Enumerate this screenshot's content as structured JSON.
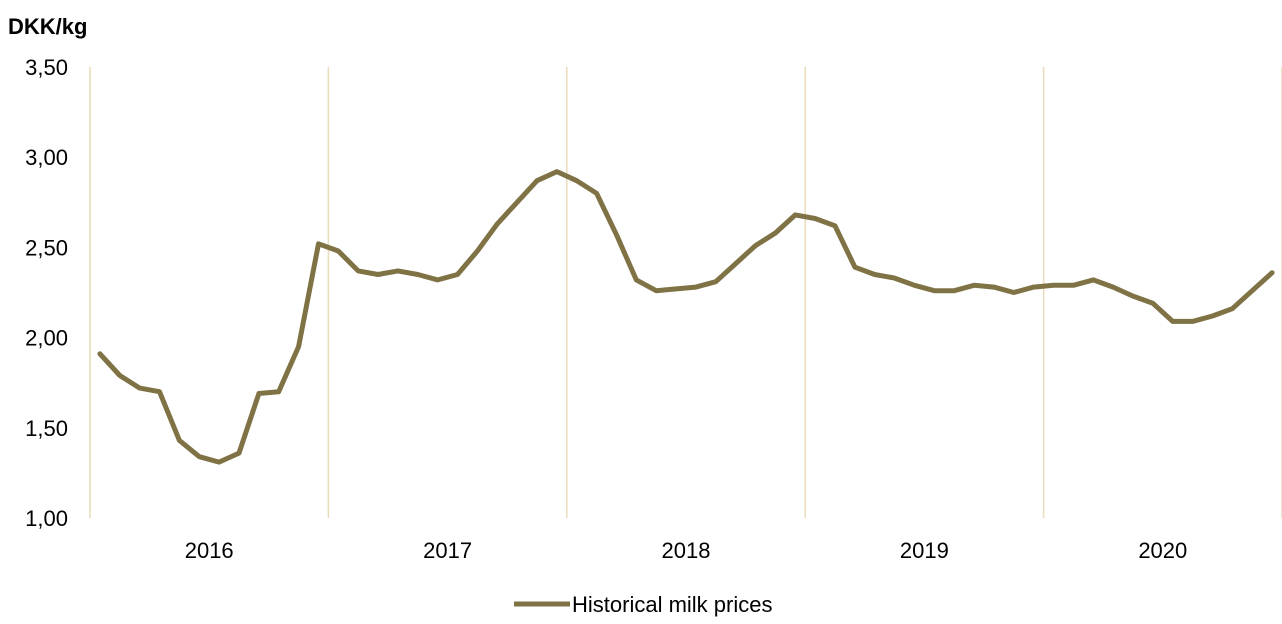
{
  "chart_data": {
    "type": "line",
    "title": "",
    "ylabel": "DKK/kg",
    "xlabel": "",
    "ylim": [
      1.0,
      3.5
    ],
    "yticks": [
      "1,00",
      "1,50",
      "2,00",
      "2,50",
      "3,00",
      "3,50"
    ],
    "ytick_values": [
      1.0,
      1.5,
      2.0,
      2.5,
      3.0,
      3.5
    ],
    "year_labels": [
      "2016",
      "2017",
      "2018",
      "2019",
      "2020"
    ],
    "months_per_year": 12,
    "grid": "vertical year separators",
    "legend_position": "bottom",
    "series": [
      {
        "name": "Historical milk prices",
        "color": "#7f7346",
        "values": [
          1.91,
          1.79,
          1.72,
          1.7,
          1.43,
          1.34,
          1.31,
          1.36,
          1.69,
          1.7,
          1.95,
          2.52,
          2.48,
          2.37,
          2.35,
          2.37,
          2.35,
          2.32,
          2.35,
          2.48,
          2.63,
          2.75,
          2.87,
          2.92,
          2.87,
          2.8,
          2.57,
          2.32,
          2.26,
          2.27,
          2.28,
          2.31,
          2.41,
          2.51,
          2.58,
          2.68,
          2.66,
          2.62,
          2.39,
          2.35,
          2.33,
          2.29,
          2.26,
          2.26,
          2.29,
          2.28,
          2.25,
          2.28,
          2.29,
          2.29,
          2.32,
          2.28,
          2.23,
          2.19,
          2.09,
          2.09,
          2.12,
          2.16,
          2.26,
          2.36
        ]
      }
    ]
  },
  "legend": {
    "label": "Historical milk prices"
  }
}
